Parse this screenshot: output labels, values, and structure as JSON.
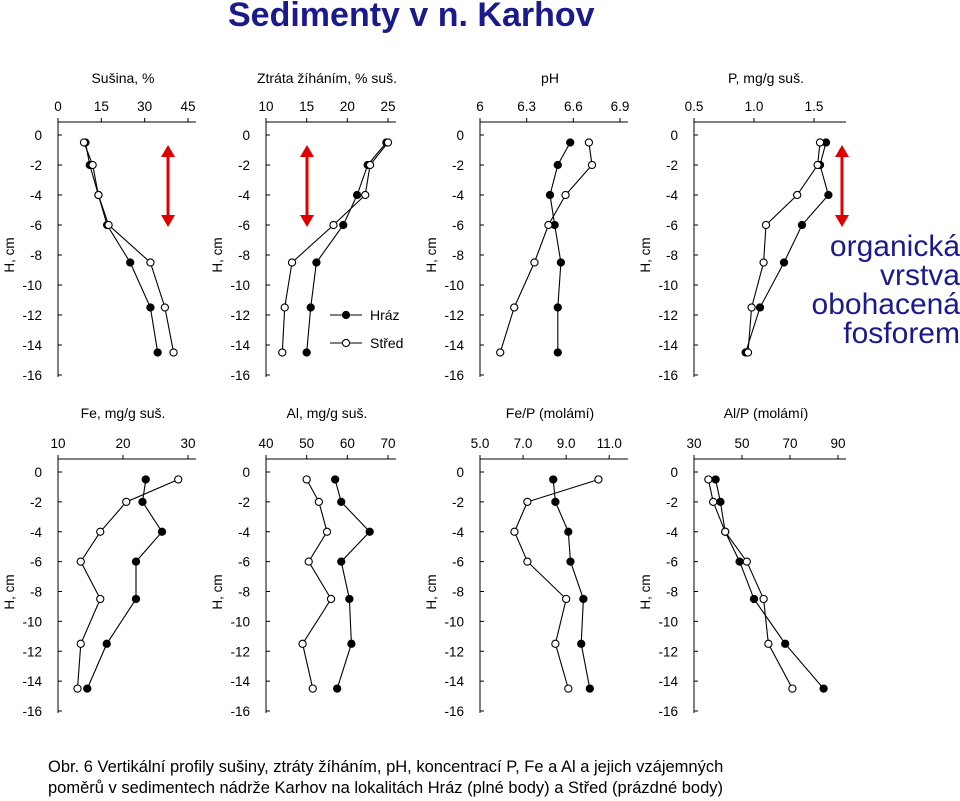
{
  "title": "Sedimenty v n. Karhov",
  "annotation": [
    "organická",
    "vrstva",
    "obohacená",
    "fosforem"
  ],
  "caption": [
    "Obr. 6  Vertikální profily sušiny, ztráty žíháním, pH, koncentrací P, Fe a Al a jejich vzájemných",
    "poměrů v sedimentech nádrže Karhov na lokalitách Hráz (plné body) a Střed (prázdné body)"
  ],
  "colors": {
    "title": "#1a1a8c",
    "arrow": "#e00000",
    "series": "#000000"
  },
  "chart_data": [
    {
      "type": "scatter",
      "title": "Sušina, %",
      "ylabel": "H, cm",
      "xlim": [
        0,
        45
      ],
      "xticks": [
        "0",
        "15",
        "30",
        "45"
      ],
      "xtick_values": [
        0,
        15,
        30,
        45
      ],
      "ylim": [
        -16,
        0
      ],
      "yticks": [
        0,
        -2,
        -4,
        -6,
        -8,
        -10,
        -12,
        -14,
        -16
      ],
      "arrow": true,
      "series": [
        {
          "name": "Hráz",
          "filled": true,
          "x": [
            9.5,
            11,
            14,
            17,
            25,
            32,
            34.5
          ],
          "y": [
            -0.5,
            -2,
            -4,
            -6,
            -8.5,
            -11.5,
            -14.5
          ]
        },
        {
          "name": "Střed",
          "filled": false,
          "x": [
            9,
            12,
            14,
            17.5,
            32,
            37,
            40
          ],
          "y": [
            -0.5,
            -2,
            -4,
            -6,
            -8.5,
            -11.5,
            -14.5
          ]
        }
      ]
    },
    {
      "type": "scatter",
      "title": "Ztráta žíháním, % suš.",
      "ylabel": "H, cm",
      "xlim": [
        10,
        25
      ],
      "xticks": [
        "10",
        "15",
        "20",
        "25"
      ],
      "xtick_values": [
        10,
        15,
        20,
        25
      ],
      "ylim": [
        -16,
        0
      ],
      "yticks": [
        0,
        -2,
        -4,
        -6,
        -8,
        -10,
        -12,
        -14,
        -16
      ],
      "arrow": true,
      "series": [
        {
          "name": "Hráz",
          "filled": true,
          "x": [
            24.8,
            22.5,
            21.2,
            19.5,
            16.2,
            15.5,
            15
          ],
          "y": [
            -0.5,
            -2,
            -4,
            -6,
            -8.5,
            -11.5,
            -14.5
          ]
        },
        {
          "name": "Střed",
          "filled": false,
          "x": [
            25,
            22.8,
            22.2,
            18.3,
            13.2,
            12.3,
            12
          ],
          "y": [
            -0.5,
            -2,
            -4,
            -6,
            -8.5,
            -11.5,
            -14.5
          ]
        }
      ],
      "legend": [
        {
          "label": "Hráz",
          "filled": true
        },
        {
          "label": "Střed",
          "filled": false
        }
      ]
    },
    {
      "type": "scatter",
      "title": "pH",
      "ylabel": "H, cm",
      "xlim": [
        6,
        6.9
      ],
      "xticks": [
        "6",
        "6.3",
        "6.6",
        "6.9"
      ],
      "xtick_values": [
        6,
        6.3,
        6.6,
        6.9
      ],
      "ylim": [
        -16,
        0
      ],
      "yticks": [
        0,
        -2,
        -4,
        -6,
        -8,
        -10,
        -12,
        -14,
        -16
      ],
      "arrow": false,
      "series": [
        {
          "name": "Hráz",
          "filled": true,
          "x": [
            6.58,
            6.5,
            6.45,
            6.48,
            6.52,
            6.5,
            6.5
          ],
          "y": [
            -0.5,
            -2,
            -4,
            -6,
            -8.5,
            -11.5,
            -14.5
          ]
        },
        {
          "name": "Střed",
          "filled": false,
          "x": [
            6.7,
            6.72,
            6.55,
            6.44,
            6.35,
            6.22,
            6.13
          ],
          "y": [
            -0.5,
            -2,
            -4,
            -6,
            -8.5,
            -11.5,
            -14.5
          ]
        }
      ]
    },
    {
      "type": "scatter",
      "title": "P, mg/g suš.",
      "ylabel": "H, cm",
      "xlim": [
        0.5,
        1.7
      ],
      "xticks": [
        "0.5",
        "1.0",
        "1.5"
      ],
      "xtick_values": [
        0.5,
        1.0,
        1.5
      ],
      "ylim": [
        -16,
        0
      ],
      "yticks": [
        0,
        -2,
        -4,
        -6,
        -8,
        -10,
        -12,
        -14,
        -16
      ],
      "arrow": true,
      "series": [
        {
          "name": "Hráz",
          "filled": true,
          "x": [
            1.6,
            1.55,
            1.62,
            1.4,
            1.25,
            1.05,
            0.93
          ],
          "y": [
            -0.5,
            -2,
            -4,
            -6,
            -8.5,
            -11.5,
            -14.5
          ]
        },
        {
          "name": "Střed",
          "filled": false,
          "x": [
            1.55,
            1.53,
            1.36,
            1.1,
            1.08,
            0.98,
            0.95
          ],
          "y": [
            -0.5,
            -2,
            -4,
            -6,
            -8.5,
            -11.5,
            -14.5
          ]
        }
      ]
    },
    {
      "type": "scatter",
      "title": "Fe, mg/g suš.",
      "ylabel": "H, cm",
      "xlim": [
        10,
        30
      ],
      "xticks": [
        "10",
        "20",
        "30"
      ],
      "xtick_values": [
        10,
        20,
        30
      ],
      "ylim": [
        -16,
        0
      ],
      "yticks": [
        0,
        -2,
        -4,
        -6,
        -8,
        -10,
        -12,
        -14,
        -16
      ],
      "arrow": false,
      "series": [
        {
          "name": "Hráz",
          "filled": true,
          "x": [
            23.5,
            23,
            26,
            22,
            22,
            17.5,
            14.5
          ],
          "y": [
            -0.5,
            -2,
            -4,
            -6,
            -8.5,
            -11.5,
            -14.5
          ]
        },
        {
          "name": "Střed",
          "filled": false,
          "x": [
            28.5,
            20.5,
            16.5,
            13.5,
            16.5,
            13.5,
            13
          ],
          "y": [
            -0.5,
            -2,
            -4,
            -6,
            -8.5,
            -11.5,
            -14.5
          ]
        }
      ]
    },
    {
      "type": "scatter",
      "title": "Al, mg/g suš.",
      "ylabel": "H, cm",
      "xlim": [
        40,
        70
      ],
      "xticks": [
        "40",
        "50",
        "60",
        "70"
      ],
      "xtick_values": [
        40,
        50,
        60,
        70
      ],
      "ylim": [
        -16,
        0
      ],
      "yticks": [
        0,
        -2,
        -4,
        -6,
        -8,
        -10,
        -12,
        -14,
        -16
      ],
      "arrow": false,
      "series": [
        {
          "name": "Hráz",
          "filled": true,
          "x": [
            57,
            58.5,
            65.5,
            58.5,
            60.5,
            61,
            57.5
          ],
          "y": [
            -0.5,
            -2,
            -4,
            -6,
            -8.5,
            -11.5,
            -14.5
          ]
        },
        {
          "name": "Střed",
          "filled": false,
          "x": [
            50,
            53,
            55,
            50.5,
            56,
            49,
            51.5
          ],
          "y": [
            -0.5,
            -2,
            -4,
            -6,
            -8.5,
            -11.5,
            -14.5
          ]
        }
      ]
    },
    {
      "type": "scatter",
      "title": "Fe/P (molámí)",
      "ylabel": "H, cm",
      "xlim": [
        5,
        11.5
      ],
      "xticks": [
        "5.0",
        "7.0",
        "9.0",
        "11.0"
      ],
      "xtick_values": [
        5,
        7,
        9,
        11
      ],
      "ylim": [
        -16,
        0
      ],
      "yticks": [
        0,
        -2,
        -4,
        -6,
        -8,
        -10,
        -12,
        -14,
        -16
      ],
      "arrow": false,
      "series": [
        {
          "name": "Hráz",
          "filled": true,
          "x": [
            8.4,
            8.5,
            9.1,
            9.2,
            9.8,
            9.7,
            10.1
          ],
          "y": [
            -0.5,
            -2,
            -4,
            -6,
            -8.5,
            -11.5,
            -14.5
          ]
        },
        {
          "name": "Střed",
          "filled": false,
          "x": [
            10.5,
            7.2,
            6.6,
            7.2,
            9,
            8.5,
            9.1
          ],
          "y": [
            -0.5,
            -2,
            -4,
            -6,
            -8.5,
            -11.5,
            -14.5
          ]
        }
      ]
    },
    {
      "type": "scatter",
      "title": "Al/P (molámí)",
      "ylabel": "H, cm",
      "xlim": [
        30,
        90
      ],
      "xticks": [
        "30",
        "50",
        "70",
        "90"
      ],
      "xtick_values": [
        30,
        50,
        70,
        90
      ],
      "ylim": [
        -16,
        0
      ],
      "yticks": [
        0,
        -2,
        -4,
        -6,
        -8,
        -10,
        -12,
        -14,
        -16
      ],
      "arrow": false,
      "series": [
        {
          "name": "Hráz",
          "filled": true,
          "x": [
            39,
            41,
            43,
            49,
            55,
            68,
            84
          ],
          "y": [
            -0.5,
            -2,
            -4,
            -6,
            -8.5,
            -11.5,
            -14.5
          ]
        },
        {
          "name": "Střed",
          "filled": false,
          "x": [
            36,
            38,
            43,
            52,
            59,
            61,
            71
          ],
          "y": [
            -0.5,
            -2,
            -4,
            -6,
            -8.5,
            -11.5,
            -14.5
          ]
        }
      ]
    }
  ]
}
